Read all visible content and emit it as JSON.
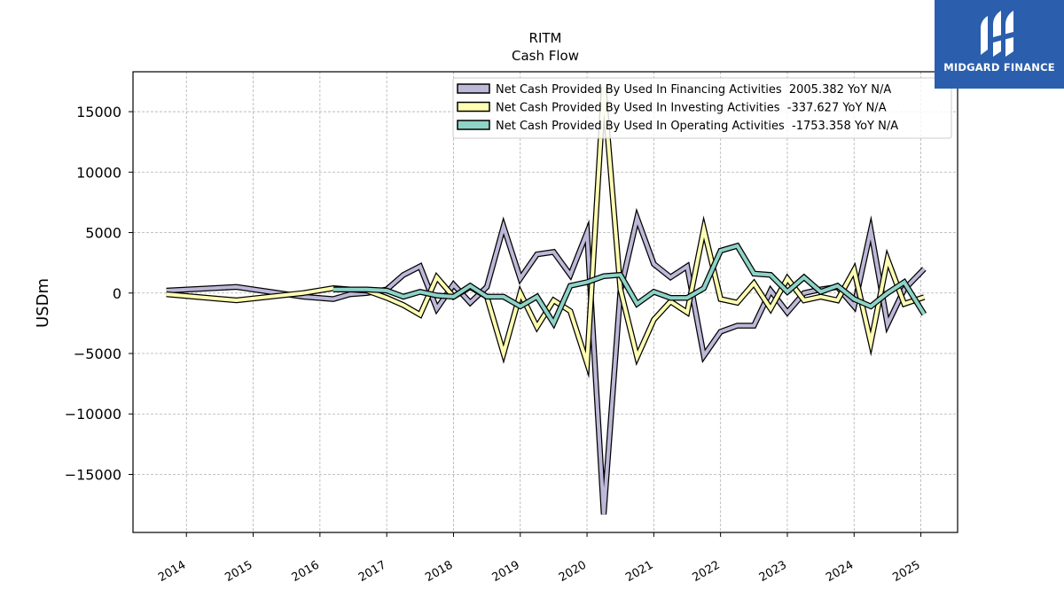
{
  "chart_data": {
    "type": "line",
    "title": "RITM",
    "subtitle": "Cash Flow",
    "xlabel": "",
    "ylabel": "USDm",
    "ylim": [
      -19800,
      18300
    ],
    "xlim": [
      2013.2,
      2025.55
    ],
    "yticks": [
      15000,
      10000,
      5000,
      0,
      -5000,
      -10000,
      -15000
    ],
    "ytick_labels": [
      "15000",
      "10000",
      "5000",
      "0",
      "−5000",
      "−10000",
      "−15000"
    ],
    "xticks": [
      2014,
      2015,
      2016,
      2017,
      2018,
      2019,
      2020,
      2021,
      2022,
      2023,
      2024,
      2025
    ],
    "xtick_labels": [
      "2014",
      "2015",
      "2016",
      "2017",
      "2018",
      "2019",
      "2020",
      "2021",
      "2022",
      "2023",
      "2024",
      "2025"
    ],
    "grid": true,
    "legend_position": "top-right",
    "series": [
      {
        "name": "Net Cash Provided By Used In Financing Activities  2005.382 YoY N/A",
        "color": "#bcb8d8",
        "x": [
          2013.7,
          2014.75,
          2015.75,
          2016.2,
          2016.45,
          2016.7,
          2017.0,
          2017.25,
          2017.5,
          2017.75,
          2018.0,
          2018.25,
          2018.5,
          2018.75,
          2019.0,
          2019.25,
          2019.5,
          2019.75,
          2020.0,
          2020.25,
          2020.5,
          2020.75,
          2021.0,
          2021.25,
          2021.5,
          2021.75,
          2022.0,
          2022.25,
          2022.5,
          2022.75,
          2023.0,
          2023.25,
          2023.5,
          2023.75,
          2024.0,
          2024.25,
          2024.5,
          2024.75,
          2025.05
        ],
        "y": [
          200,
          500,
          -300,
          -500,
          -100,
          0,
          300,
          1500,
          2200,
          -1300,
          700,
          -800,
          500,
          5500,
          1200,
          3200,
          3400,
          1500,
          5000,
          -18300,
          200,
          6200,
          2400,
          1300,
          2200,
          -5200,
          -3200,
          -2700,
          -2700,
          200,
          -1600,
          0,
          300,
          500,
          -1100,
          5200,
          -2600,
          300,
          2000
        ]
      },
      {
        "name": "Net Cash Provided By Used In Investing Activities  -337.627 YoY N/A",
        "color": "#ffffb3",
        "x": [
          2013.7,
          2014.75,
          2015.75,
          2016.2,
          2016.45,
          2016.7,
          2017.0,
          2017.25,
          2017.5,
          2017.75,
          2018.0,
          2018.25,
          2018.5,
          2018.75,
          2019.0,
          2019.25,
          2019.5,
          2019.75,
          2020.0,
          2020.25,
          2020.5,
          2020.75,
          2021.0,
          2021.25,
          2021.5,
          2021.75,
          2022.0,
          2022.25,
          2022.5,
          2022.75,
          2023.0,
          2023.25,
          2023.5,
          2023.75,
          2024.0,
          2024.25,
          2024.5,
          2024.75,
          2025.05
        ],
        "y": [
          -100,
          -600,
          0,
          400,
          300,
          200,
          -400,
          -1000,
          -1800,
          1300,
          -300,
          500,
          -300,
          -5000,
          0,
          -2800,
          -600,
          -1500,
          -5800,
          17000,
          300,
          -5300,
          -2200,
          -700,
          -1600,
          5300,
          -500,
          -800,
          800,
          -1300,
          1200,
          -600,
          -300,
          -600,
          1900,
          -4100,
          2800,
          -900,
          -338
        ]
      },
      {
        "name": "Net Cash Provided By Used In Operating Activities  -1753.358 YoY N/A",
        "color": "#8dd3c7",
        "x": [
          2016.2,
          2016.45,
          2016.7,
          2017.0,
          2017.25,
          2017.5,
          2017.75,
          2018.0,
          2018.25,
          2018.5,
          2018.75,
          2019.0,
          2019.25,
          2019.5,
          2019.75,
          2020.0,
          2020.25,
          2020.5,
          2020.75,
          2021.0,
          2021.25,
          2021.5,
          2021.75,
          2022.0,
          2022.25,
          2022.5,
          2022.75,
          2023.0,
          2023.25,
          2023.5,
          2023.75,
          2024.0,
          2024.25,
          2024.5,
          2024.75,
          2025.05
        ],
        "y": [
          300,
          300,
          300,
          200,
          -300,
          100,
          -200,
          -300,
          600,
          -300,
          -300,
          -1100,
          -300,
          -2500,
          600,
          900,
          1400,
          1500,
          -900,
          100,
          -400,
          -400,
          400,
          3500,
          3900,
          1600,
          1500,
          100,
          1300,
          100,
          600,
          -500,
          -1100,
          0,
          900,
          -1753
        ]
      }
    ]
  },
  "brand": {
    "name": "MIDGARD FINANCE",
    "color": "#2b5fad"
  }
}
